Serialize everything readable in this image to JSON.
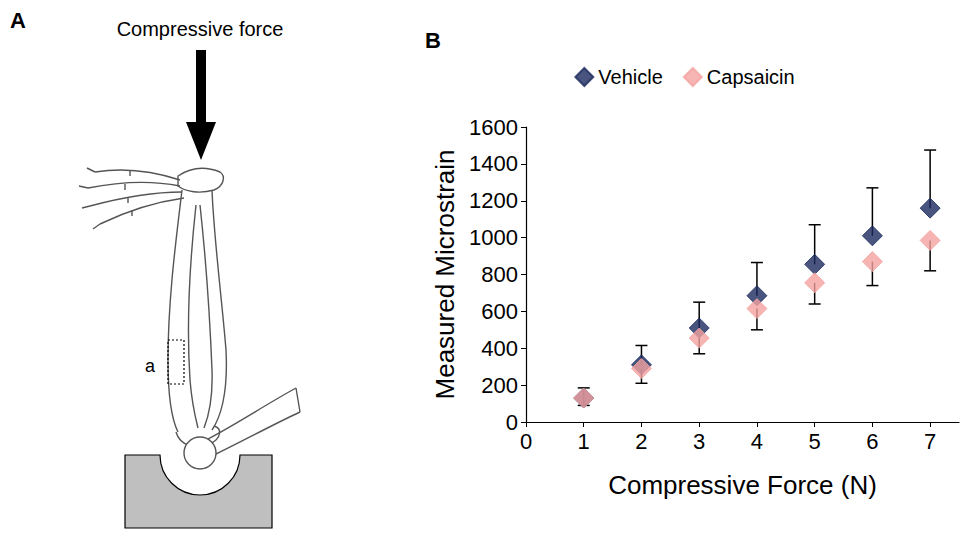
{
  "diagram": {
    "panel_label": "A",
    "force_label": "Compressive force",
    "region_label": "a"
  },
  "chart_data": {
    "type": "scatter",
    "panel_label": "B",
    "x_label": "Compressive Force (N)",
    "y_label": "Measured Microstrain",
    "x": [
      1,
      2,
      3,
      4,
      5,
      6,
      7
    ],
    "series": [
      {
        "name": "Vehicle",
        "color": "#1b2a5e",
        "marker": "diamond",
        "values": [
          130,
          310,
          510,
          685,
          855,
          1010,
          1160
        ],
        "error_upper": [
          55,
          105,
          140,
          180,
          215,
          260,
          315
        ]
      },
      {
        "name": "Capsaicin",
        "color": "#f4a3a0",
        "marker": "diamond",
        "values": [
          130,
          290,
          455,
          615,
          755,
          870,
          985
        ],
        "error_lower": [
          40,
          80,
          85,
          115,
          115,
          130,
          165
        ]
      }
    ],
    "xlim": [
      0,
      7.5
    ],
    "xticks": [
      0,
      1,
      2,
      3,
      4,
      5,
      6,
      7
    ],
    "ylim": [
      0,
      1600
    ],
    "yticks": [
      0,
      200,
      400,
      600,
      800,
      1000,
      1200,
      1400,
      1600
    ],
    "grid": false,
    "legend": "top"
  }
}
